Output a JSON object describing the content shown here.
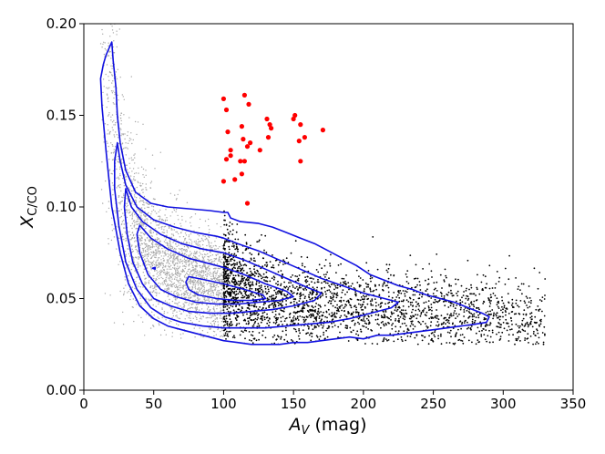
{
  "chart_data": {
    "type": "scatter",
    "x_range": [
      0,
      350
    ],
    "y_range": [
      0.0,
      0.2
    ],
    "x_ticks": [
      "0",
      "50",
      "100",
      "150",
      "200",
      "250",
      "300",
      "350"
    ],
    "y_ticks": [
      "0.00",
      "0.05",
      "0.10",
      "0.15",
      "0.20"
    ],
    "xlabel": {
      "italic": "A",
      "sub": "V",
      "rest": " (mag)"
    },
    "ylabel": {
      "italic": "X",
      "sub": "C/CO"
    },
    "grid": false,
    "legend": "none",
    "colors": {
      "grey_points": "#a9a9a9",
      "black_points": "#000000",
      "red_points": "#ff0000",
      "contours": "#1010e0"
    },
    "series": [
      {
        "style": "grey-points",
        "description_x_range": [
          12,
          100
        ],
        "density_profile": {
          "ridge": [
            [
              15,
              0.19
            ],
            [
              20,
              0.155
            ],
            [
              25,
              0.12
            ],
            [
              30,
              0.1
            ],
            [
              40,
              0.085
            ],
            [
              50,
              0.075
            ],
            [
              60,
              0.068
            ],
            [
              75,
              0.062
            ],
            [
              90,
              0.058
            ],
            [
              100,
              0.056
            ]
          ]
        }
      },
      {
        "style": "black-points",
        "description_x_range": [
          100,
          330
        ],
        "density_profile": {
          "ridge": [
            [
              100,
              0.058
            ],
            [
              120,
              0.05
            ],
            [
              140,
              0.048
            ],
            [
              160,
              0.047
            ],
            [
              180,
              0.045
            ],
            [
              200,
              0.044
            ],
            [
              230,
              0.043
            ],
            [
              260,
              0.041
            ],
            [
              290,
              0.039
            ],
            [
              320,
              0.036
            ]
          ]
        }
      },
      {
        "style": "red-points",
        "points": [
          [
            100,
            0.159
          ],
          [
            102,
            0.153
          ],
          [
            115,
            0.161
          ],
          [
            118,
            0.156
          ],
          [
            113,
            0.144
          ],
          [
            103,
            0.141
          ],
          [
            114,
            0.137
          ],
          [
            117,
            0.133
          ],
          [
            119,
            0.135
          ],
          [
            126,
            0.131
          ],
          [
            131,
            0.148
          ],
          [
            132,
            0.138
          ],
          [
            133,
            0.145
          ],
          [
            134,
            0.143
          ],
          [
            151,
            0.15
          ],
          [
            150,
            0.148
          ],
          [
            155,
            0.145
          ],
          [
            158,
            0.138
          ],
          [
            171,
            0.142
          ],
          [
            154,
            0.136
          ],
          [
            105,
            0.131
          ],
          [
            105,
            0.128
          ],
          [
            102,
            0.126
          ],
          [
            112,
            0.125
          ],
          [
            115,
            0.125
          ],
          [
            113,
            0.118
          ],
          [
            108,
            0.115
          ],
          [
            100,
            0.114
          ],
          [
            117,
            0.102
          ],
          [
            155,
            0.125
          ]
        ]
      }
    ],
    "contours": [
      [
        [
          20,
          0.19
        ],
        [
          21,
          0.18
        ],
        [
          23,
          0.165
        ],
        [
          24,
          0.15
        ],
        [
          26,
          0.135
        ],
        [
          30,
          0.12
        ],
        [
          37,
          0.108
        ],
        [
          48,
          0.102
        ],
        [
          60,
          0.1
        ],
        [
          75,
          0.099
        ],
        [
          90,
          0.098
        ],
        [
          100,
          0.097
        ],
        [
          103,
          0.097
        ],
        [
          105,
          0.094
        ],
        [
          112,
          0.092
        ],
        [
          125,
          0.091
        ],
        [
          135,
          0.089
        ],
        [
          145,
          0.086
        ],
        [
          155,
          0.083
        ],
        [
          165,
          0.08
        ],
        [
          175,
          0.076
        ],
        [
          185,
          0.072
        ],
        [
          195,
          0.068
        ],
        [
          205,
          0.063
        ],
        [
          215,
          0.06
        ],
        [
          225,
          0.057
        ],
        [
          235,
          0.055
        ],
        [
          245,
          0.052
        ],
        [
          255,
          0.05
        ],
        [
          265,
          0.048
        ],
        [
          275,
          0.045
        ],
        [
          285,
          0.042
        ],
        [
          290,
          0.04
        ],
        [
          288,
          0.037
        ],
        [
          280,
          0.036
        ],
        [
          270,
          0.035
        ],
        [
          260,
          0.034
        ],
        [
          250,
          0.033
        ],
        [
          240,
          0.032
        ],
        [
          230,
          0.031
        ],
        [
          220,
          0.03
        ],
        [
          210,
          0.03
        ],
        [
          200,
          0.028
        ],
        [
          190,
          0.029
        ],
        [
          180,
          0.028
        ],
        [
          170,
          0.027
        ],
        [
          160,
          0.026
        ],
        [
          150,
          0.026
        ],
        [
          140,
          0.025
        ],
        [
          130,
          0.025
        ],
        [
          120,
          0.025
        ],
        [
          110,
          0.026
        ],
        [
          100,
          0.027
        ],
        [
          90,
          0.029
        ],
        [
          80,
          0.031
        ],
        [
          70,
          0.033
        ],
        [
          60,
          0.035
        ],
        [
          50,
          0.039
        ],
        [
          40,
          0.046
        ],
        [
          32,
          0.058
        ],
        [
          26,
          0.075
        ],
        [
          20,
          0.1
        ],
        [
          16,
          0.13
        ],
        [
          13,
          0.155
        ],
        [
          12,
          0.17
        ],
        [
          14,
          0.178
        ],
        [
          16,
          0.183
        ],
        [
          20,
          0.19
        ]
      ],
      [
        [
          24,
          0.135
        ],
        [
          26,
          0.125
        ],
        [
          30,
          0.112
        ],
        [
          38,
          0.1
        ],
        [
          50,
          0.093
        ],
        [
          65,
          0.089
        ],
        [
          80,
          0.086
        ],
        [
          95,
          0.084
        ],
        [
          100,
          0.083
        ],
        [
          110,
          0.08
        ],
        [
          125,
          0.076
        ],
        [
          140,
          0.071
        ],
        [
          155,
          0.066
        ],
        [
          170,
          0.061
        ],
        [
          185,
          0.057
        ],
        [
          200,
          0.053
        ],
        [
          215,
          0.05
        ],
        [
          225,
          0.048
        ],
        [
          220,
          0.045
        ],
        [
          210,
          0.043
        ],
        [
          200,
          0.041
        ],
        [
          190,
          0.039
        ],
        [
          175,
          0.037
        ],
        [
          160,
          0.036
        ],
        [
          145,
          0.035
        ],
        [
          130,
          0.034
        ],
        [
          115,
          0.034
        ],
        [
          100,
          0.034
        ],
        [
          85,
          0.035
        ],
        [
          70,
          0.037
        ],
        [
          58,
          0.04
        ],
        [
          48,
          0.045
        ],
        [
          38,
          0.055
        ],
        [
          30,
          0.07
        ],
        [
          25,
          0.09
        ],
        [
          22,
          0.11
        ],
        [
          22,
          0.125
        ],
        [
          24,
          0.135
        ]
      ],
      [
        [
          30,
          0.11
        ],
        [
          34,
          0.1
        ],
        [
          42,
          0.092
        ],
        [
          55,
          0.085
        ],
        [
          70,
          0.08
        ],
        [
          85,
          0.077
        ],
        [
          100,
          0.075
        ],
        [
          115,
          0.071
        ],
        [
          130,
          0.066
        ],
        [
          145,
          0.061
        ],
        [
          160,
          0.056
        ],
        [
          170,
          0.053
        ],
        [
          165,
          0.049
        ],
        [
          150,
          0.046
        ],
        [
          135,
          0.044
        ],
        [
          120,
          0.043
        ],
        [
          105,
          0.042
        ],
        [
          90,
          0.042
        ],
        [
          75,
          0.043
        ],
        [
          62,
          0.046
        ],
        [
          50,
          0.05
        ],
        [
          42,
          0.058
        ],
        [
          35,
          0.07
        ],
        [
          31,
          0.085
        ],
        [
          29,
          0.1
        ],
        [
          30,
          0.11
        ]
      ],
      [
        [
          40,
          0.09
        ],
        [
          48,
          0.083
        ],
        [
          60,
          0.077
        ],
        [
          75,
          0.072
        ],
        [
          90,
          0.069
        ],
        [
          100,
          0.067
        ],
        [
          115,
          0.063
        ],
        [
          130,
          0.058
        ],
        [
          145,
          0.054
        ],
        [
          150,
          0.051
        ],
        [
          140,
          0.049
        ],
        [
          125,
          0.048
        ],
        [
          110,
          0.047
        ],
        [
          95,
          0.047
        ],
        [
          80,
          0.048
        ],
        [
          66,
          0.051
        ],
        [
          55,
          0.055
        ],
        [
          46,
          0.063
        ],
        [
          40,
          0.075
        ],
        [
          38,
          0.085
        ],
        [
          40,
          0.09
        ]
      ],
      [
        [
          75,
          0.062
        ],
        [
          88,
          0.06
        ],
        [
          100,
          0.058
        ],
        [
          115,
          0.055
        ],
        [
          128,
          0.052
        ],
        [
          130,
          0.05
        ],
        [
          120,
          0.049
        ],
        [
          108,
          0.049
        ],
        [
          95,
          0.05
        ],
        [
          82,
          0.052
        ],
        [
          75,
          0.055
        ],
        [
          73,
          0.059
        ],
        [
          75,
          0.062
        ]
      ],
      [
        [
          49,
          0.0665
        ],
        [
          51,
          0.066
        ],
        [
          51,
          0.067
        ],
        [
          49,
          0.0665
        ]
      ]
    ]
  }
}
